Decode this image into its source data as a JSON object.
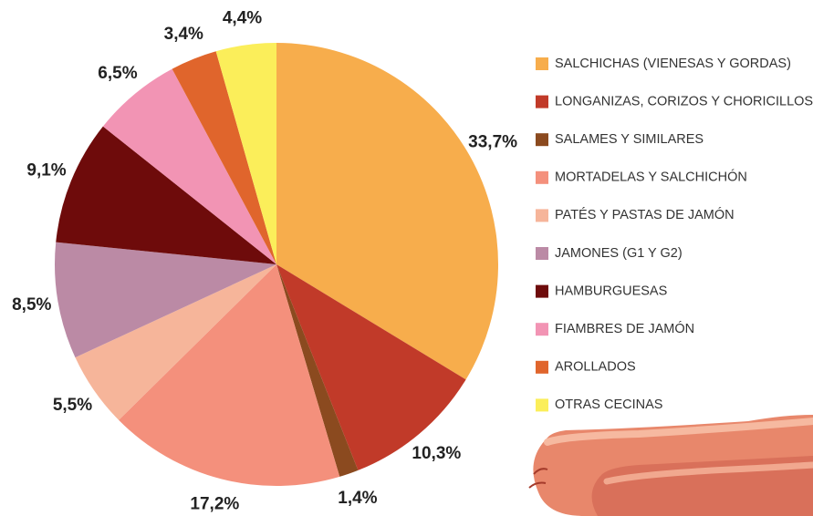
{
  "chart_data": {
    "type": "pie",
    "categories": [
      "SALCHICHAS (VIENESAS Y GORDAS)",
      "LONGANIZAS, CORIZOS Y CHORICILLOS",
      "SALAMES Y SIMILARES",
      "MORTADELAS Y SALCHICHÓN",
      "PATÉS Y PASTAS DE JAMÓN",
      "JAMONES (G1 Y G2)",
      "HAMBURGUESAS",
      "FIAMBRES DE JAMÓN",
      "AROLLADOS",
      "OTRAS CECINAS"
    ],
    "values": [
      33.7,
      10.3,
      1.4,
      17.2,
      5.5,
      8.5,
      9.1,
      6.5,
      3.4,
      4.4
    ],
    "value_labels": [
      "33,7%",
      "10,3%",
      "1,4%",
      "17,2%",
      "5,5%",
      "8,5%",
      "9,1%",
      "6,5%",
      "3,4%",
      "4,4%"
    ],
    "colors": [
      "#f7ad4c",
      "#c13a29",
      "#8b4a1f",
      "#f4907c",
      "#f6b59a",
      "#bb8aa5",
      "#6e0b0b",
      "#f294b4",
      "#e0652c",
      "#fbee5a"
    ]
  }
}
